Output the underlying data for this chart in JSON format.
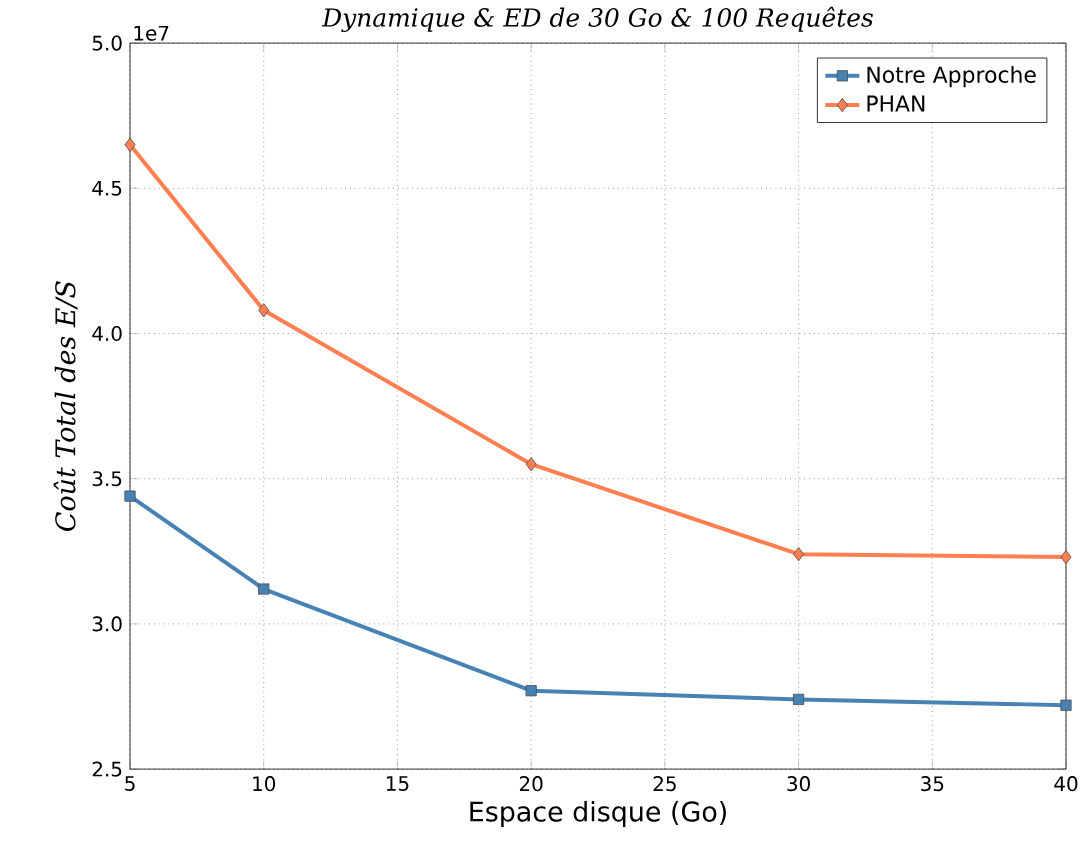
{
  "chart_data": {
    "type": "line",
    "title": "Dynamique & ED de 30 Go & 100 Requêtes",
    "xlabel": "Espace disque (Go)",
    "ylabel": "Coût Total des E/S",
    "x": [
      5,
      10,
      20,
      30,
      40
    ],
    "series": [
      {
        "name": "Notre Approche",
        "color": "#4682b4",
        "marker": "square",
        "values": [
          3.44,
          3.12,
          2.77,
          2.74,
          2.72
        ]
      },
      {
        "name": "PHAN",
        "color": "#ff7f50",
        "marker": "diamond",
        "values": [
          4.65,
          4.08,
          3.55,
          3.24,
          3.23
        ]
      }
    ],
    "xlim": [
      5,
      40
    ],
    "xticks": [
      5,
      10,
      15,
      20,
      25,
      30,
      35,
      40
    ],
    "ylim": [
      2.5,
      5.0
    ],
    "yticks": [
      {
        "value": 2.5,
        "label": "2.5"
      },
      {
        "value": 3.0,
        "label": "3.0"
      },
      {
        "value": 3.5,
        "label": "3.5"
      },
      {
        "value": 4.0,
        "label": "4.0"
      },
      {
        "value": 4.5,
        "label": "4.5"
      },
      {
        "value": 5.0,
        "label": "5.0"
      }
    ],
    "annotations": [
      "1e7"
    ],
    "grid": true,
    "legend": "top right",
    "line_style": "solid"
  }
}
